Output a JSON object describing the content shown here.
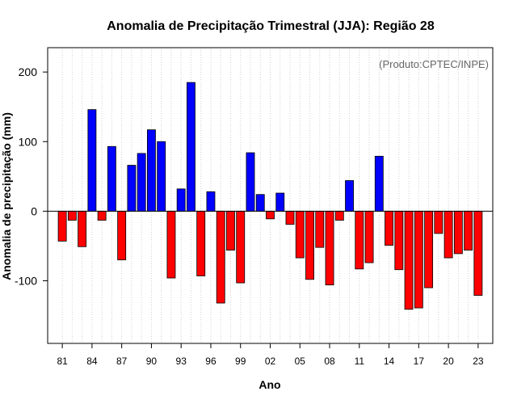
{
  "chart_data": {
    "type": "bar",
    "title": "Anomalia de Precipitação Trimestral (JJA): Região 28",
    "xlabel": "Ano",
    "ylabel": "Anomalia de precipitação (mm)",
    "annotation": "(Produto:CPTEC/INPE)",
    "ylim": [
      -190,
      235
    ],
    "yticks": [
      -100,
      0,
      100,
      200
    ],
    "xtick_labels": [
      "81",
      "84",
      "87",
      "90",
      "93",
      "96",
      "99",
      "02",
      "05",
      "08",
      "11",
      "14",
      "17",
      "20",
      "23"
    ],
    "xtick_years": [
      1981,
      1984,
      1987,
      1990,
      1993,
      1996,
      1999,
      2002,
      2005,
      2008,
      2011,
      2014,
      2017,
      2020,
      2023
    ],
    "grid": true,
    "colors": {
      "positive": "#0000ff",
      "negative": "#ff0000",
      "zero_line": "#000000",
      "grid": "#d0d0d0"
    },
    "years": [
      1981,
      1982,
      1983,
      1984,
      1985,
      1986,
      1987,
      1988,
      1989,
      1990,
      1991,
      1992,
      1993,
      1994,
      1995,
      1996,
      1997,
      1998,
      1999,
      2000,
      2001,
      2002,
      2003,
      2004,
      2005,
      2006,
      2007,
      2008,
      2009,
      2010,
      2011,
      2012,
      2013,
      2014,
      2015,
      2016,
      2017,
      2018,
      2019,
      2020,
      2021,
      2022,
      2023
    ],
    "values": [
      -43,
      -13,
      -51,
      146,
      -13,
      93,
      -70,
      66,
      83,
      117,
      100,
      -96,
      32,
      185,
      -93,
      28,
      -132,
      -56,
      -103,
      84,
      24,
      -11,
      26,
      -19,
      -67,
      -98,
      -52,
      -106,
      -13,
      44,
      -83,
      -74,
      79,
      -49,
      -84,
      -141,
      -139,
      -110,
      -32,
      -67,
      -61,
      -56,
      -121
    ]
  }
}
